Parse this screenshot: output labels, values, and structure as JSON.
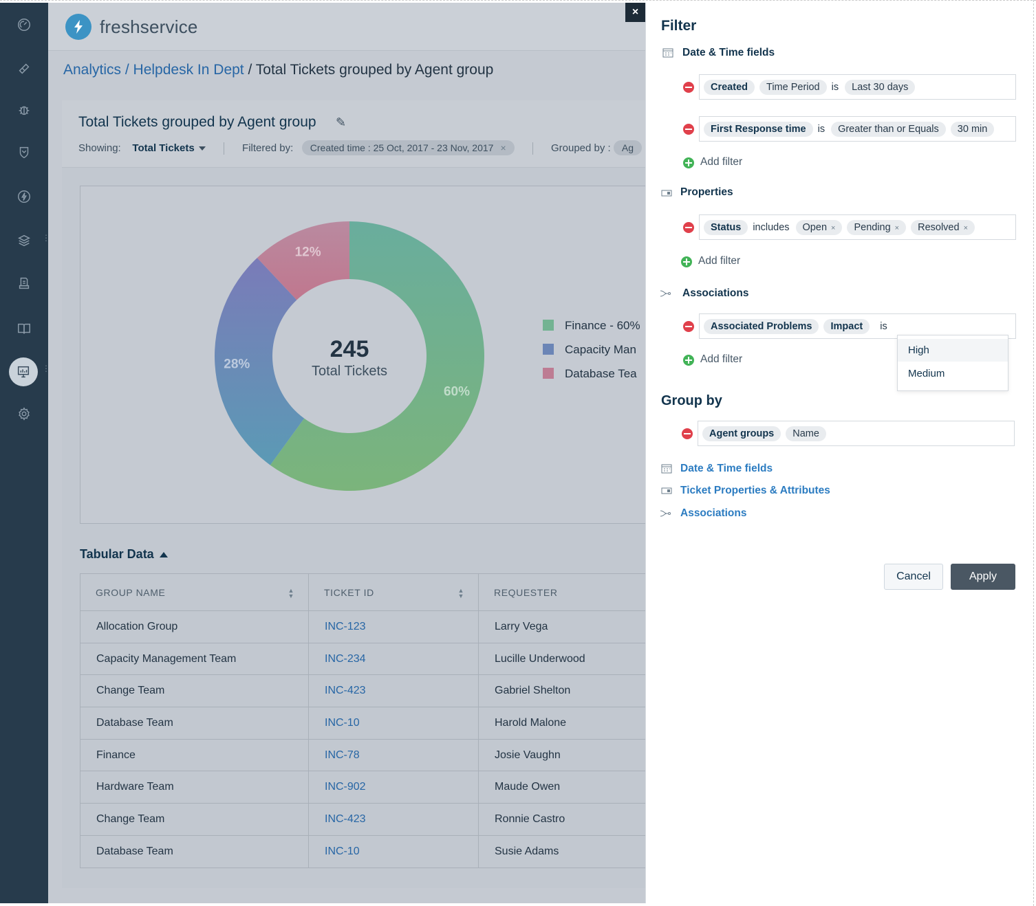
{
  "brand": {
    "name": "freshservice"
  },
  "breadcrumb": {
    "part1": "Analytics",
    "sep1": " / ",
    "part2": "Helpdesk In Dept",
    "sep2": " / ",
    "current": "Total Tickets grouped by Agent group"
  },
  "report": {
    "title": "Total Tickets grouped by Agent group",
    "showing_label": "Showing:",
    "showing_value": "Total Tickets",
    "filtered_label": "Filtered by:",
    "filter_pill": "Created time : 25 Oct, 2017 - 23 Nov, 2017",
    "grouped_label": "Grouped by :",
    "grouped_value": "Ag"
  },
  "chart_data": {
    "type": "pie",
    "style": "donut",
    "center_value": "245",
    "center_label": "Total Tickets",
    "slices": [
      {
        "name": "Finance",
        "percent": 60,
        "label": "60%",
        "color_start": "#69ad9d",
        "color_end": "#7bb47b"
      },
      {
        "name": "Capacity Management Team",
        "percent": 28,
        "label": "28%",
        "color_start": "#7a7bb8",
        "color_end": "#5b9ab5"
      },
      {
        "name": "Database Team",
        "percent": 12,
        "label": "12%",
        "color_start": "#b98aa0",
        "color_end": "#c0778e"
      }
    ],
    "legend": [
      "Finance - 60%",
      "Capacity Man",
      "Database Tea"
    ],
    "legend_placement": "right"
  },
  "tabular": {
    "title": "Tabular Data",
    "columns": [
      "GROUP NAME",
      "TICKET ID",
      "REQUESTER"
    ],
    "rows": [
      [
        "Allocation Group",
        "INC-123",
        "Larry Vega"
      ],
      [
        "Capacity Management Team",
        "INC-234",
        "Lucille Underwood"
      ],
      [
        "Change Team",
        "INC-423",
        "Gabriel Shelton"
      ],
      [
        "Database Team",
        "INC-10",
        "Harold Malone"
      ],
      [
        "Finance",
        "INC-78",
        "Josie Vaughn"
      ],
      [
        "Hardware Team",
        "INC-902",
        "Maude Owen"
      ],
      [
        "Change Team",
        "INC-423",
        "Ronnie Castro"
      ],
      [
        "Database Team",
        "INC-10",
        "Susie Adams"
      ]
    ]
  },
  "panel": {
    "close": "×",
    "title": "Filter",
    "date_section": "Date & Time fields",
    "rule1": {
      "field": "Created",
      "sub": "Time Period",
      "op": "is",
      "value": "Last 30 days"
    },
    "rule2": {
      "field": "First Response time",
      "op": "is",
      "value1": "Greater than or Equals",
      "value2": "30 min"
    },
    "add_filter": "Add filter",
    "prop_section": "Properties",
    "rule3": {
      "field": "Status",
      "op": "includes",
      "values": [
        "Open",
        "Pending",
        "Resolved"
      ],
      "remove": "×"
    },
    "assoc_section": "Associations",
    "rule4": {
      "field": "Associated Problems",
      "sub": "Impact",
      "op": "is"
    },
    "dropdown": [
      "High",
      "Medium"
    ],
    "groupby_title": "Group by",
    "group_rule": {
      "field": "Agent groups",
      "sub": "Name"
    },
    "links": [
      "Date & Time fields",
      "Ticket Properties & Attributes",
      "Associations"
    ],
    "cancel": "Cancel",
    "apply": "Apply"
  },
  "colors": {
    "sidebar": "#273b4c",
    "link": "#2c7cc1",
    "remove": "#e0404b",
    "add": "#42b357",
    "apply": "#4a5763"
  }
}
